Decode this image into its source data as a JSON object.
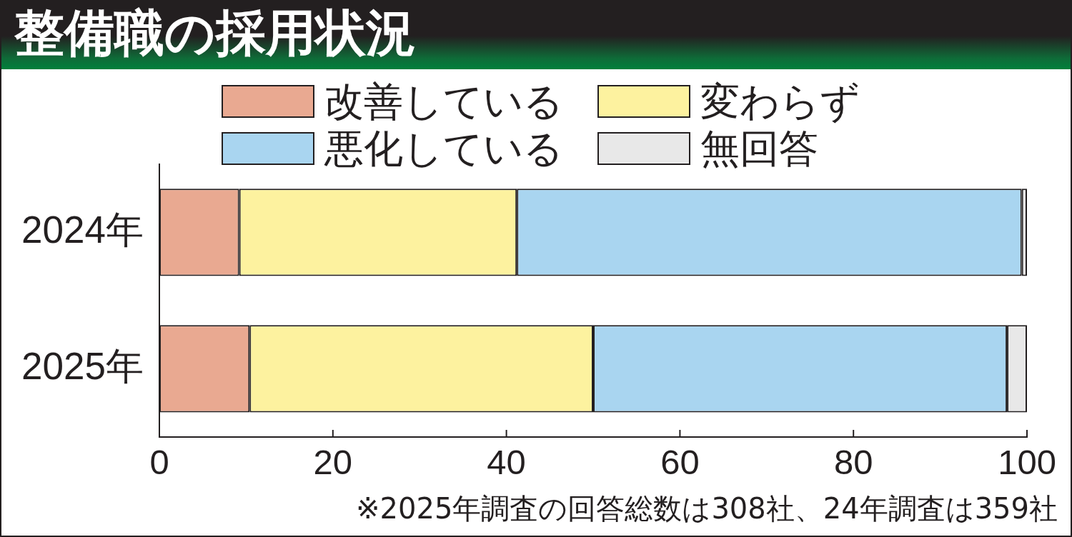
{
  "chart_data": {
    "type": "bar",
    "orientation": "horizontal",
    "stacked": true,
    "title": "整備職の採用状況",
    "categories": [
      "2024年",
      "2025年"
    ],
    "series": [
      {
        "name": "改善している",
        "color": "#e9a991",
        "values": [
          9.2,
          10.4
        ]
      },
      {
        "name": "変わらず",
        "color": "#fdf29f",
        "values": [
          32.0,
          39.6
        ]
      },
      {
        "name": "悪化している",
        "color": "#a9d5f0",
        "values": [
          58.2,
          47.7
        ]
      },
      {
        "name": "無回答",
        "color": "#e8e8e8",
        "values": [
          0.6,
          2.3
        ]
      }
    ],
    "xlim": [
      0,
      100
    ],
    "xticks": [
      0,
      20,
      40,
      60,
      80,
      100
    ],
    "legend": "top",
    "annotations": [
      "※2025年調査の回答総数は308社、24年調査は359社"
    ]
  }
}
